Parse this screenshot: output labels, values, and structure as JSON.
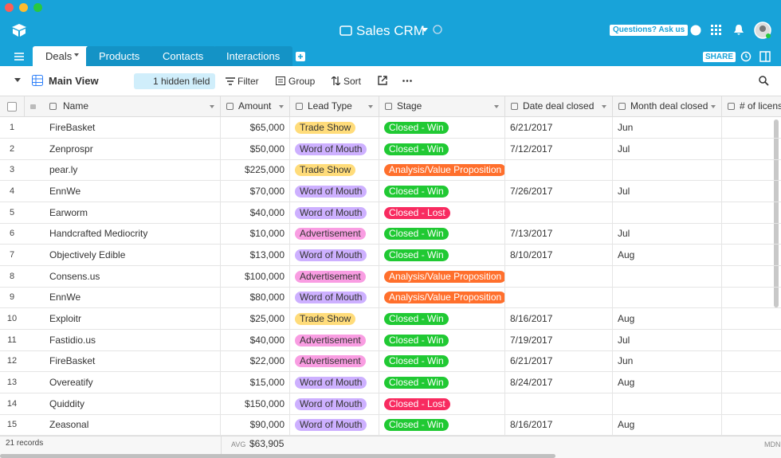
{
  "app": {
    "title": "Sales CRM",
    "help": "Questions? Ask us",
    "share": "SHARE"
  },
  "tabs": [
    "Deals",
    "Products",
    "Contacts",
    "Interactions"
  ],
  "toolbar": {
    "view": "Main View",
    "hidden": "1 hidden field",
    "filter": "Filter",
    "group": "Group",
    "sort": "Sort"
  },
  "table": {
    "columns": [
      "Name",
      "Amount",
      "Lead Type",
      "Stage",
      "Date deal closed",
      "Month deal closed",
      "# of licens"
    ],
    "rows": [
      {
        "n": 1,
        "name": "FireBasket",
        "amount": "$65,000",
        "lead": {
          "text": "Trade Show",
          "color": "#ffdc7a"
        },
        "stage": {
          "text": "Closed - Win",
          "color": "#20c933"
        },
        "date": "6/21/2017",
        "month": "Jun"
      },
      {
        "n": 2,
        "name": "Zenprospr",
        "amount": "$50,000",
        "lead": {
          "text": "Word of Mouth",
          "color": "#cdb0ff"
        },
        "stage": {
          "text": "Closed - Win",
          "color": "#20c933"
        },
        "date": "7/12/2017",
        "month": "Jul"
      },
      {
        "n": 3,
        "name": "pear.ly",
        "amount": "$225,000",
        "lead": {
          "text": "Trade Show",
          "color": "#ffdc7a"
        },
        "stage": {
          "text": "Analysis/Value Proposition",
          "color": "#ff6f2c"
        }
      },
      {
        "n": 4,
        "name": "EnnWe",
        "amount": "$70,000",
        "lead": {
          "text": "Word of Mouth",
          "color": "#cdb0ff"
        },
        "stage": {
          "text": "Closed - Win",
          "color": "#20c933"
        },
        "date": "7/26/2017",
        "month": "Jul"
      },
      {
        "n": 5,
        "name": "Earworm",
        "amount": "$40,000",
        "lead": {
          "text": "Word of Mouth",
          "color": "#cdb0ff"
        },
        "stage": {
          "text": "Closed - Lost",
          "color": "#f82b60"
        }
      },
      {
        "n": 6,
        "name": "Handcrafted Mediocrity",
        "amount": "$10,000",
        "lead": {
          "text": "Advertisement",
          "color": "#f99de2"
        },
        "stage": {
          "text": "Closed - Win",
          "color": "#20c933"
        },
        "date": "7/13/2017",
        "month": "Jul"
      },
      {
        "n": 7,
        "name": "Objectively Edible",
        "amount": "$13,000",
        "lead": {
          "text": "Word of Mouth",
          "color": "#cdb0ff"
        },
        "stage": {
          "text": "Closed - Win",
          "color": "#20c933"
        },
        "date": "8/10/2017",
        "month": "Aug"
      },
      {
        "n": 8,
        "name": "Consens.us",
        "amount": "$100,000",
        "lead": {
          "text": "Advertisement",
          "color": "#f99de2"
        },
        "stage": {
          "text": "Analysis/Value Proposition",
          "color": "#ff6f2c"
        }
      },
      {
        "n": 9,
        "name": "EnnWe",
        "amount": "$80,000",
        "lead": {
          "text": "Word of Mouth",
          "color": "#cdb0ff"
        },
        "stage": {
          "text": "Analysis/Value Proposition",
          "color": "#ff6f2c"
        }
      },
      {
        "n": 10,
        "name": "Exploitr",
        "amount": "$25,000",
        "lead": {
          "text": "Trade Show",
          "color": "#ffdc7a"
        },
        "stage": {
          "text": "Closed - Win",
          "color": "#20c933"
        },
        "date": "8/16/2017",
        "month": "Aug"
      },
      {
        "n": 11,
        "name": "Fastidio.us",
        "amount": "$40,000",
        "lead": {
          "text": "Advertisement",
          "color": "#f99de2"
        },
        "stage": {
          "text": "Closed - Win",
          "color": "#20c933"
        },
        "date": "7/19/2017",
        "month": "Jul"
      },
      {
        "n": 12,
        "name": "FireBasket",
        "amount": "$22,000",
        "lead": {
          "text": "Advertisement",
          "color": "#f99de2"
        },
        "stage": {
          "text": "Closed - Win",
          "color": "#20c933"
        },
        "date": "6/21/2017",
        "month": "Jun"
      },
      {
        "n": 13,
        "name": "Overeatify",
        "amount": "$15,000",
        "lead": {
          "text": "Word of Mouth",
          "color": "#cdb0ff"
        },
        "stage": {
          "text": "Closed - Win",
          "color": "#20c933"
        },
        "date": "8/24/2017",
        "month": "Aug"
      },
      {
        "n": 14,
        "name": "Quiddity",
        "amount": "$150,000",
        "lead": {
          "text": "Word of Mouth",
          "color": "#cdb0ff"
        },
        "stage": {
          "text": "Closed - Lost",
          "color": "#f82b60"
        }
      },
      {
        "n": 15,
        "name": "Zeasonal",
        "amount": "$90,000",
        "lead": {
          "text": "Word of Mouth",
          "color": "#cdb0ff"
        },
        "stage": {
          "text": "Closed - Win",
          "color": "#20c933"
        },
        "date": "8/16/2017",
        "month": "Aug"
      }
    ]
  },
  "footer": {
    "records": "21 records",
    "agg_label": "AVG",
    "agg_value": "$63,905",
    "right": "MDN"
  }
}
